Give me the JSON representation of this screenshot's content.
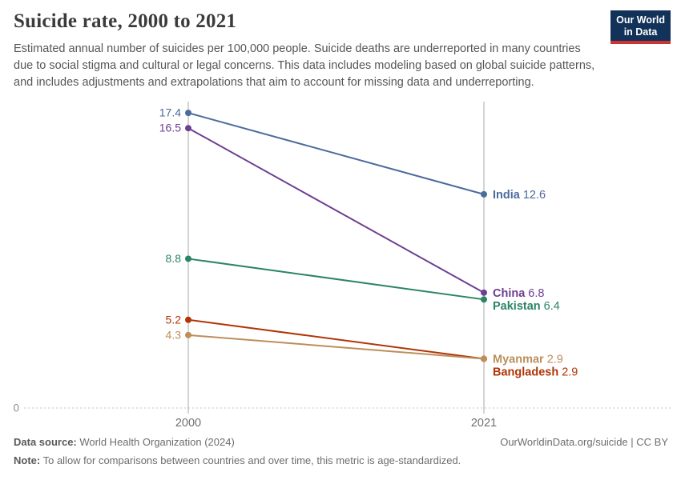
{
  "header": {
    "title": "Suicide rate, 2000 to 2021",
    "subtitle": "Estimated annual number of suicides per 100,000 people. Suicide deaths are underreported in many countries due to social stigma and cultural or legal concerns. This data includes modeling based on global suicide patterns, and includes adjustments and extrapolations that aim to account for missing data and underreporting."
  },
  "logo": {
    "line1": "Our World",
    "line2": "in Data"
  },
  "chart_data": {
    "type": "line",
    "subtype": "slope",
    "title": "Suicide rate, 2000 to 2021",
    "x": [
      "2000",
      "2021"
    ],
    "series": [
      {
        "name": "India",
        "color": "#4C6A9C",
        "values": [
          17.4,
          12.6
        ],
        "start_label": "17.4",
        "end_label": "12.6"
      },
      {
        "name": "China",
        "color": "#6D3E91",
        "values": [
          16.5,
          6.8
        ],
        "start_label": "16.5",
        "end_label": "6.8"
      },
      {
        "name": "Pakistan",
        "color": "#2C8465",
        "values": [
          8.8,
          6.4
        ],
        "start_label": "8.8",
        "end_label": "6.4"
      },
      {
        "name": "Bangladesh",
        "color": "#B13507",
        "values": [
          5.2,
          2.9
        ],
        "start_label": "5.2",
        "end_label": "2.9"
      },
      {
        "name": "Myanmar",
        "color": "#BC8E5A",
        "values": [
          4.3,
          2.9
        ],
        "start_label": "4.3",
        "end_label": "2.9"
      }
    ],
    "ylim": [
      0,
      18.1
    ],
    "y_zero_label": "0",
    "grid": "zero-line-only",
    "legend": "inline-end-labels",
    "axis_colors": {
      "axis_line": "#a8a8a8",
      "zero_line": "#cfcfcf",
      "zero_label": "#8f8f8f",
      "tick_label": "#707070"
    }
  },
  "footer": {
    "datasource_label": "Data source:",
    "datasource": " World Health Organization (2024)",
    "link": "OurWorldinData.org/suicide | CC BY",
    "note_label": "Note:",
    "note": " To allow for comparisons between countries and over time, this metric is age-standardized."
  }
}
